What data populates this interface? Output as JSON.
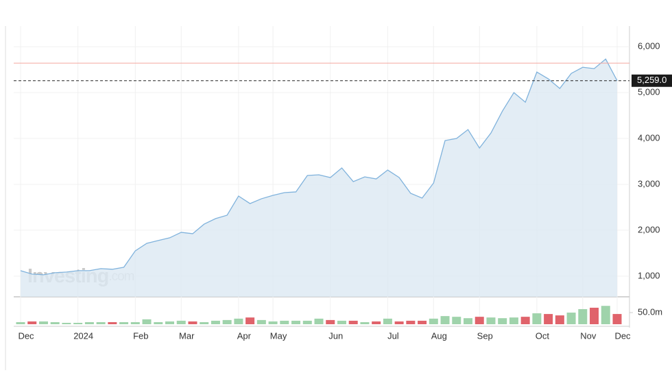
{
  "chart_data": [
    {
      "type": "area",
      "categories": [
        "Dec",
        null,
        null,
        null,
        null,
        "2024",
        null,
        null,
        null,
        null,
        "Feb",
        null,
        null,
        null,
        "Mar",
        null,
        null,
        null,
        null,
        "Apr",
        null,
        null,
        "May",
        null,
        null,
        null,
        null,
        "Jun",
        null,
        null,
        null,
        null,
        "Jul",
        null,
        null,
        null,
        "Aug",
        null,
        null,
        null,
        "Sep",
        null,
        null,
        null,
        null,
        "Oct",
        null,
        null,
        null,
        "Nov",
        null,
        null,
        "Dec"
      ],
      "values": [
        1119,
        1045,
        1030,
        1075,
        1090,
        1119,
        1119,
        1164,
        1150,
        1194,
        1552,
        1716,
        1776,
        1836,
        1955,
        1925,
        2134,
        2254,
        2328,
        2746,
        2582,
        2687,
        2761,
        2821,
        2836,
        3194,
        3209,
        3149,
        3358,
        3060,
        3164,
        3119,
        3313,
        3149,
        2806,
        2701,
        3030,
        3955,
        4000,
        4194,
        3791,
        4119,
        4597,
        5000,
        4791,
        5448,
        5299,
        5090,
        5418,
        5552,
        5522,
        5731,
        5259
      ],
      "color": "#7fb2dc",
      "ylim": [
        550,
        6450
      ],
      "yticks": [
        {
          "value": 1000,
          "label": "1,000"
        },
        {
          "value": 2000,
          "label": "2,000"
        },
        {
          "value": 3000,
          "label": "3,000"
        },
        {
          "value": 4000,
          "label": "4,000"
        },
        {
          "value": 5000,
          "label": "5,000"
        },
        {
          "value": 6000,
          "label": "6,000"
        }
      ],
      "grid": true,
      "reference_line": {
        "value": 5642,
        "color": "#f3a69f"
      },
      "last_price": {
        "value": 5259,
        "label": "5,259.0"
      },
      "watermark": {
        "brand": "Investing",
        "suffix": ".com"
      }
    },
    {
      "type": "bar",
      "values": [
        9,
        12,
        12,
        9,
        6,
        6,
        9,
        9,
        9,
        9,
        9,
        21,
        9,
        12,
        15,
        12,
        9,
        15,
        18,
        24,
        29,
        18,
        12,
        15,
        15,
        15,
        24,
        18,
        15,
        15,
        9,
        12,
        24,
        12,
        15,
        15,
        24,
        35,
        32,
        26,
        32,
        29,
        26,
        29,
        32,
        47,
        44,
        38,
        50,
        65,
        71,
        79,
        44
      ],
      "colors": [
        "#9fd3ab",
        "#e0636b",
        "#9fd3ab",
        "#9fd3ab",
        "#9fd3ab",
        "#9fd3ab",
        "#9fd3ab",
        "#9fd3ab",
        "#e0636b",
        "#9fd3ab",
        "#9fd3ab",
        "#9fd3ab",
        "#9fd3ab",
        "#9fd3ab",
        "#9fd3ab",
        "#e0636b",
        "#9fd3ab",
        "#9fd3ab",
        "#9fd3ab",
        "#9fd3ab",
        "#e0636b",
        "#9fd3ab",
        "#9fd3ab",
        "#9fd3ab",
        "#9fd3ab",
        "#9fd3ab",
        "#9fd3ab",
        "#e0636b",
        "#9fd3ab",
        "#e0636b",
        "#9fd3ab",
        "#e0636b",
        "#9fd3ab",
        "#e0636b",
        "#e0636b",
        "#e0636b",
        "#9fd3ab",
        "#9fd3ab",
        "#9fd3ab",
        "#9fd3ab",
        "#e0636b",
        "#9fd3ab",
        "#9fd3ab",
        "#9fd3ab",
        "#e0636b",
        "#9fd3ab",
        "#e0636b",
        "#e0636b",
        "#9fd3ab",
        "#9fd3ab",
        "#e0636b",
        "#9fd3ab",
        "#e0636b"
      ],
      "ylim": [
        0,
        118
      ],
      "yticks": [
        {
          "value": 50,
          "label": "50.0m"
        }
      ]
    }
  ]
}
